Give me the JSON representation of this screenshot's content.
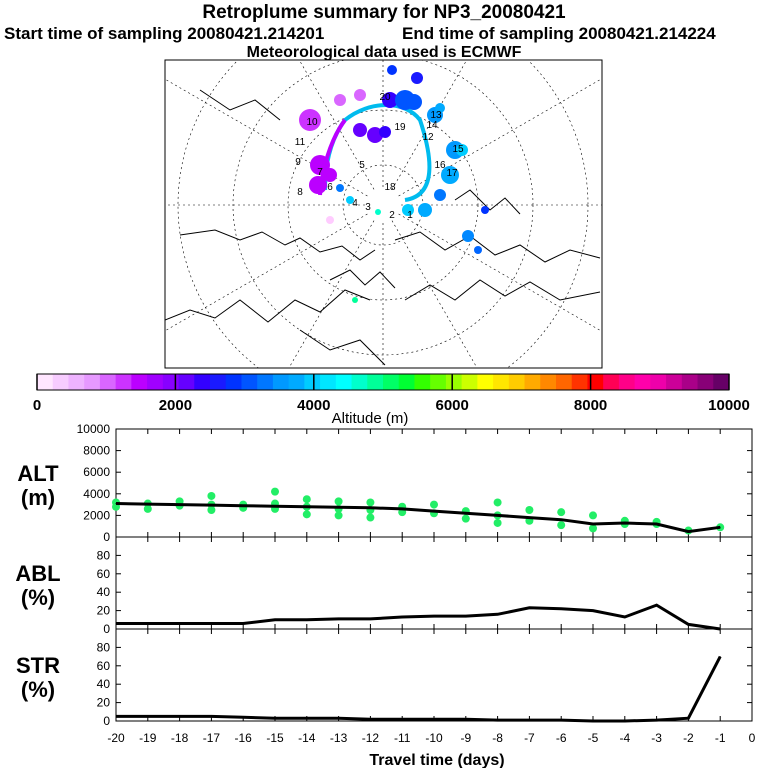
{
  "title": "Retroplume summary for NP3_20080421",
  "sampling": {
    "start": "Start time of sampling 20080421.214201",
    "end": "End time of sampling 20080421.214224"
  },
  "met_note": "Meteorological data used is ECMWF",
  "colorbar": {
    "label": "Altitude (m)",
    "ticks": [
      "0",
      "2000",
      "4000",
      "6000",
      "8000",
      "10000"
    ],
    "colors": [
      "#ffe6ff",
      "#f7ccff",
      "#eeb3ff",
      "#e699ff",
      "#d966ff",
      "#cc33ff",
      "#bb00ff",
      "#a000ff",
      "#8800ff",
      "#6600ff",
      "#3300ff",
      "#1a1aff",
      "#0033ff",
      "#0055ff",
      "#0077ff",
      "#0099ff",
      "#00aaff",
      "#00ccff",
      "#00e6ff",
      "#00ffff",
      "#00ffcc",
      "#00ff99",
      "#00ff66",
      "#00ff33",
      "#33ff00",
      "#66ff00",
      "#99ff00",
      "#ccff00",
      "#ffff00",
      "#ffe600",
      "#ffcc00",
      "#ffaa00",
      "#ff8800",
      "#ff6600",
      "#ff3300",
      "#ff0000",
      "#ff0055",
      "#ff0088",
      "#ff00aa",
      "#ee00aa",
      "#cc0099",
      "#aa0088",
      "#880077",
      "#660066"
    ]
  },
  "map_labels": [
    "1",
    "2",
    "3",
    "4",
    "5",
    "6",
    "7",
    "8",
    "9",
    "10",
    "11",
    "12",
    "13",
    "14",
    "15",
    "16",
    "17",
    "18",
    "19",
    "20"
  ],
  "chart_data": [
    {
      "type": "line",
      "name": "ALT",
      "ylabel": "ALT (m)",
      "ylabel_line1": "ALT",
      "ylabel_line2": "(m)",
      "ylim": [
        0,
        10000
      ],
      "yticks": [
        0,
        2000,
        4000,
        6000,
        8000,
        10000
      ],
      "x": [
        -20,
        -19,
        -18,
        -17,
        -16,
        -15,
        -14,
        -13,
        -12,
        -11,
        -10,
        -9,
        -8,
        -7,
        -6,
        -5,
        -4,
        -3,
        -2,
        -1
      ],
      "values": [
        3100,
        3050,
        3000,
        2950,
        2900,
        2850,
        2800,
        2750,
        2700,
        2600,
        2400,
        2200,
        2000,
        1800,
        1600,
        1200,
        1300,
        1200,
        500,
        900
      ],
      "scatter": [
        {
          "x": -20,
          "y": 3200
        },
        {
          "x": -20,
          "y": 2800
        },
        {
          "x": -19,
          "y": 3100
        },
        {
          "x": -19,
          "y": 2600
        },
        {
          "x": -18,
          "y": 3300
        },
        {
          "x": -18,
          "y": 2900
        },
        {
          "x": -17,
          "y": 3800
        },
        {
          "x": -17,
          "y": 3000
        },
        {
          "x": -17,
          "y": 2500
        },
        {
          "x": -16,
          "y": 3000
        },
        {
          "x": -16,
          "y": 2700
        },
        {
          "x": -15,
          "y": 4200
        },
        {
          "x": -15,
          "y": 3100
        },
        {
          "x": -15,
          "y": 2600
        },
        {
          "x": -14,
          "y": 3500
        },
        {
          "x": -14,
          "y": 2800
        },
        {
          "x": -14,
          "y": 2100
        },
        {
          "x": -13,
          "y": 3300
        },
        {
          "x": -13,
          "y": 2600
        },
        {
          "x": -13,
          "y": 2000
        },
        {
          "x": -12,
          "y": 3200
        },
        {
          "x": -12,
          "y": 2500
        },
        {
          "x": -12,
          "y": 1800
        },
        {
          "x": -11,
          "y": 2800
        },
        {
          "x": -11,
          "y": 2300
        },
        {
          "x": -10,
          "y": 3000
        },
        {
          "x": -10,
          "y": 2200
        },
        {
          "x": -9,
          "y": 2400
        },
        {
          "x": -9,
          "y": 1700
        },
        {
          "x": -8,
          "y": 3200
        },
        {
          "x": -8,
          "y": 2000
        },
        {
          "x": -8,
          "y": 1300
        },
        {
          "x": -7,
          "y": 2500
        },
        {
          "x": -7,
          "y": 1500
        },
        {
          "x": -6,
          "y": 2300
        },
        {
          "x": -6,
          "y": 1100
        },
        {
          "x": -5,
          "y": 2000
        },
        {
          "x": -5,
          "y": 800
        },
        {
          "x": -4,
          "y": 1500
        },
        {
          "x": -4,
          "y": 1200
        },
        {
          "x": -3,
          "y": 1400
        },
        {
          "x": -3,
          "y": 1200
        },
        {
          "x": -2,
          "y": 600
        },
        {
          "x": -1,
          "y": 900
        }
      ]
    },
    {
      "type": "line",
      "name": "ABL",
      "ylabel": "ABL (%)",
      "ylabel_line1": "ABL",
      "ylabel_line2": "(%)",
      "ylim": [
        0,
        100
      ],
      "yticks": [
        0,
        20,
        40,
        60,
        80
      ],
      "x": [
        -20,
        -19,
        -18,
        -17,
        -16,
        -15,
        -14,
        -13,
        -12,
        -11,
        -10,
        -9,
        -8,
        -7,
        -6,
        -5,
        -4,
        -3,
        -2,
        -1
      ],
      "values": [
        6,
        6,
        6,
        6,
        6,
        10,
        10,
        11,
        11,
        13,
        14,
        14,
        16,
        23,
        22,
        20,
        13,
        26,
        5,
        0
      ]
    },
    {
      "type": "line",
      "name": "STR",
      "ylabel": "STR (%)",
      "ylabel_line1": "STR",
      "ylabel_line2": "(%)",
      "ylim": [
        0,
        100
      ],
      "yticks": [
        0,
        20,
        40,
        60,
        80
      ],
      "x": [
        -20,
        -19,
        -18,
        -17,
        -16,
        -15,
        -14,
        -13,
        -12,
        -11,
        -10,
        -9,
        -8,
        -7,
        -6,
        -5,
        -4,
        -3,
        -2,
        -1
      ],
      "values": [
        5,
        5,
        5,
        5,
        4,
        3,
        3,
        3,
        2,
        2,
        2,
        2,
        1,
        1,
        1,
        0,
        0,
        1,
        3,
        70
      ],
      "xlabel": "Travel time (days)",
      "xticks": [
        -20,
        -19,
        -18,
        -17,
        -16,
        -15,
        -14,
        -13,
        -12,
        -11,
        -10,
        -9,
        -8,
        -7,
        -6,
        -5,
        -4,
        -3,
        -2,
        -1,
        0
      ]
    }
  ]
}
